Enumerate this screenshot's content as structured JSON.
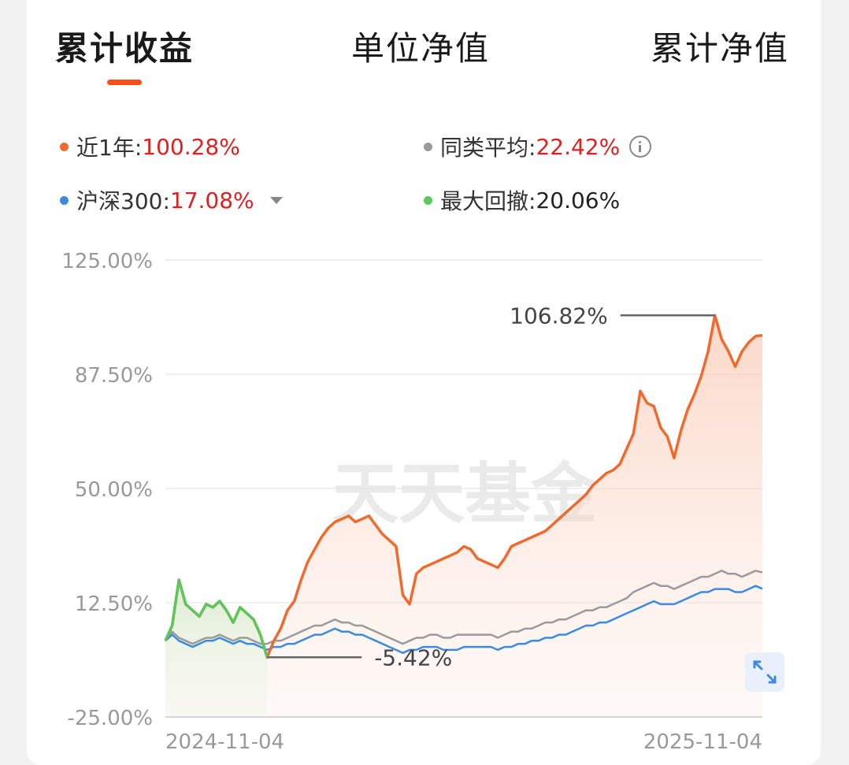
{
  "tabs": [
    {
      "label": "累计收益",
      "active": true
    },
    {
      "label": "单位净值",
      "active": false
    },
    {
      "label": "累计净值",
      "active": false
    }
  ],
  "legend": {
    "fund": {
      "label": "近1年:",
      "value": "100.28%",
      "color": "#f06a2d"
    },
    "peer": {
      "label": "同类平均:",
      "value": "22.42%",
      "color": "#9b9b9b"
    },
    "index": {
      "label": "沪深300:",
      "value": "17.08%",
      "color": "#3d8be0"
    },
    "drawdown": {
      "label": "最大回撤:",
      "value": "20.06%",
      "color": "#5cc75c"
    }
  },
  "accent_color": "#ff4e1b",
  "watermark": "天天基金",
  "chart_data": {
    "type": "line",
    "x_start": "2024-11-04",
    "x_end": "2025-11-04",
    "x_tick_labels": [
      "2024-11-04",
      "2025-11-04"
    ],
    "y_tick_labels": [
      "125.00%",
      "87.50%",
      "50.00%",
      "12.50%",
      "-25.00%"
    ],
    "ylim": [
      -25,
      125
    ],
    "annotations": {
      "max_label": "106.82%",
      "min_label": "-5.42%"
    },
    "series": [
      {
        "key": "fund",
        "color": "#f06a2d",
        "values": [
          0,
          5,
          20,
          12,
          10,
          8,
          12,
          11,
          13,
          10,
          6,
          11,
          9,
          7,
          2,
          -5.42,
          0,
          4,
          10,
          13,
          20,
          26,
          30,
          34,
          37,
          39,
          40,
          41,
          39,
          40,
          41,
          38,
          35,
          33,
          31,
          15,
          12,
          22,
          24,
          25,
          26,
          27,
          28,
          29,
          31,
          30,
          27,
          26,
          25,
          24,
          27,
          31,
          32,
          33,
          34,
          35,
          36,
          38,
          40,
          42,
          44,
          46,
          48,
          51,
          53,
          55,
          56,
          58,
          63,
          68,
          82,
          78,
          77,
          70,
          67,
          60,
          69,
          76,
          81,
          87,
          95,
          106.82,
          99,
          95,
          90,
          95,
          98,
          100,
          100.28
        ]
      },
      {
        "key": "peer",
        "color": "#9b9b9b",
        "values": [
          0,
          3,
          1,
          0,
          -1,
          0,
          1,
          1,
          2,
          1,
          0,
          1,
          1,
          0,
          -1,
          -1,
          0,
          0,
          1,
          2,
          3,
          4,
          5,
          5,
          6,
          7,
          6,
          6,
          5,
          5,
          4,
          3,
          2,
          1,
          0,
          -1,
          0,
          1,
          1,
          2,
          2,
          1,
          1,
          2,
          2,
          2,
          2,
          2,
          2,
          1,
          2,
          3,
          3,
          4,
          4,
          5,
          6,
          6,
          7,
          7,
          8,
          9,
          10,
          10,
          11,
          11,
          12,
          13,
          14,
          16,
          17,
          18,
          19,
          18,
          18,
          17,
          18,
          19,
          20,
          21,
          21,
          22,
          23,
          22,
          22,
          21,
          22,
          23,
          22.42
        ]
      },
      {
        "key": "index",
        "color": "#3d8be0",
        "values": [
          0,
          2,
          0,
          -1,
          -2,
          -1,
          0,
          0,
          1,
          0,
          -1,
          0,
          -1,
          -1,
          -2,
          -3,
          -2,
          -2,
          -1,
          -1,
          0,
          1,
          2,
          2,
          3,
          4,
          3,
          3,
          2,
          2,
          1,
          0,
          -1,
          -2,
          -3,
          -4,
          -3,
          -3,
          -2,
          -2,
          -2,
          -3,
          -3,
          -3,
          -2,
          -2,
          -2,
          -2,
          -2,
          -3,
          -2,
          -2,
          -1,
          -1,
          0,
          0,
          1,
          1,
          2,
          2,
          3,
          4,
          5,
          5,
          6,
          6,
          7,
          8,
          9,
          10,
          11,
          12,
          13,
          12,
          12,
          12,
          13,
          14,
          15,
          16,
          16,
          17,
          17,
          17,
          16,
          16,
          17,
          18,
          17.08
        ]
      },
      {
        "key": "drawdown",
        "color": "#5cc75c",
        "values": [
          0,
          5,
          20,
          12,
          10,
          8,
          12,
          11,
          13,
          10,
          6,
          11,
          9,
          7,
          2,
          -5.42
        ]
      }
    ]
  }
}
